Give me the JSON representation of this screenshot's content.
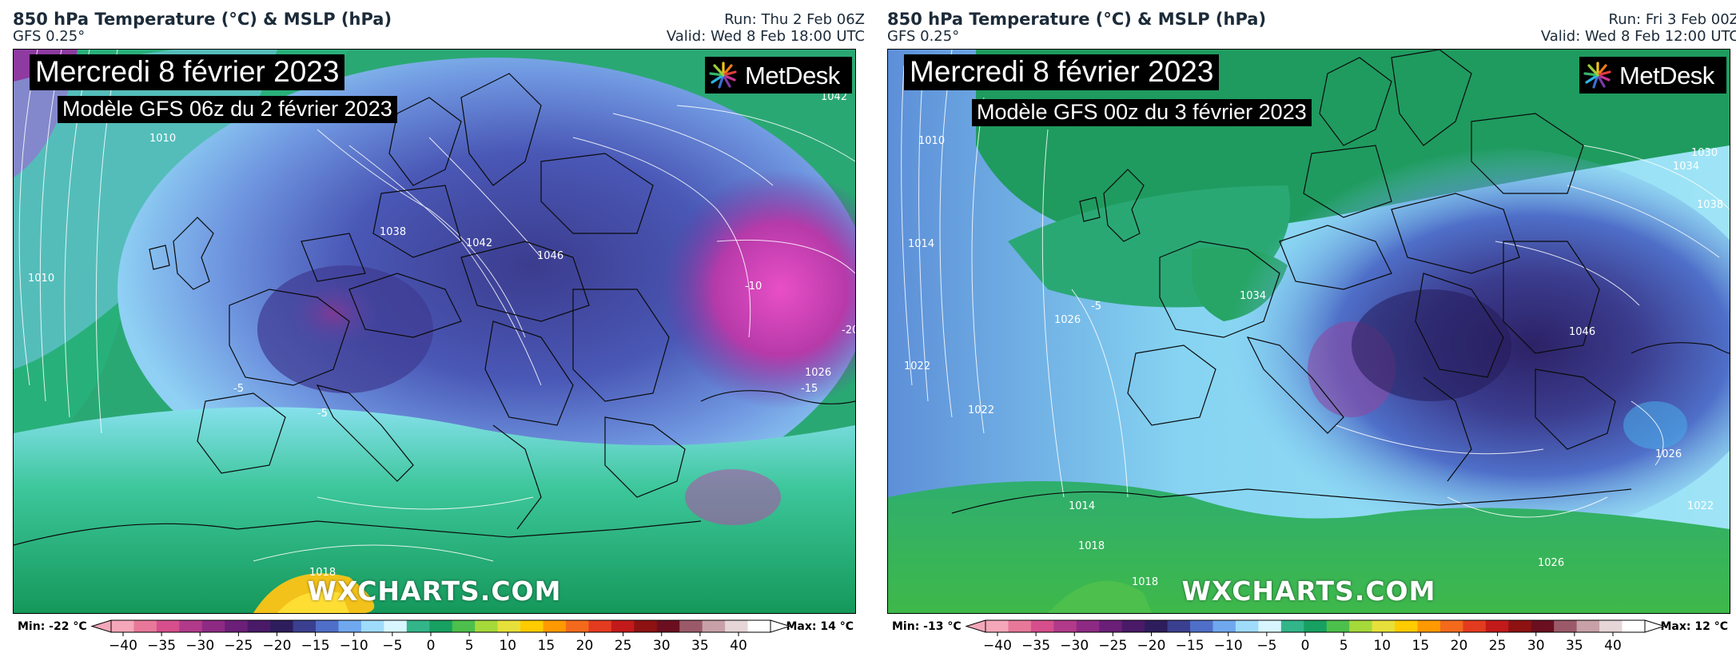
{
  "panels": [
    {
      "title": "850 hPa Temperature (°C) & MSLP (hPa)",
      "model": "GFS 0.25°",
      "run": "Run: Thu 2 Feb 06Z",
      "valid": "Valid: Wed 8 Feb 18:00 UTC",
      "date_banner": "Mercredi 8 février 2023",
      "model_banner": "Modèle GFS 06z du 2 février 2023",
      "logo": "MetDesk",
      "watermark": "WXCHARTS.COM",
      "min_label": "Min: -22 °C",
      "max_label": "Max: 14 °C",
      "contour_labels": [
        "1042",
        "1038",
        "1042",
        "1046",
        "1010",
        "1010",
        "1026",
        "1018",
        "-5",
        "-5",
        "-10",
        "-15",
        "-20"
      ]
    },
    {
      "title": "850 hPa Temperature (°C) & MSLP (hPa)",
      "model": "GFS 0.25°",
      "run": "Run: Fri 3 Feb 00Z",
      "valid": "Valid: Wed 8 Feb 12:00 UTC",
      "date_banner": "Mercredi 8 février 2023",
      "model_banner": "Modèle GFS 00z du 3 février 2023",
      "logo": "MetDesk",
      "watermark": "WXCHARTS.COM",
      "min_label": "Min: -13 °C",
      "max_label": "Max: 12 °C",
      "contour_labels": [
        "1010",
        "1014",
        "1022",
        "1026",
        "1034",
        "1046",
        "1030",
        "1034",
        "1038",
        "1022",
        "1018",
        "1026",
        "1014",
        "1018",
        "1026",
        "1022",
        "-5"
      ]
    }
  ],
  "colorbar": {
    "ticks": [
      "−40",
      "−35",
      "−30",
      "−25",
      "−20",
      "−15",
      "−10",
      "−5",
      "0",
      "5",
      "10",
      "15",
      "20",
      "25",
      "30",
      "35",
      "40"
    ],
    "colors": [
      "#f4a7b9",
      "#e8789a",
      "#d64f8c",
      "#b23a8a",
      "#8e2a84",
      "#6b1f78",
      "#4a1a68",
      "#2e1d5c",
      "#3a3f8f",
      "#4f6fc8",
      "#6fa8ee",
      "#9fdcfb",
      "#d8f6ff",
      "#33b58a",
      "#17a061",
      "#4cbf4c",
      "#a6d93a",
      "#e8e03a",
      "#ffcc00",
      "#ff9900",
      "#f36a1c",
      "#e33b1f",
      "#c21a1a",
      "#8e1212",
      "#6b0f20",
      "#9a5a6a",
      "#c8a0a8",
      "#e6d6d8",
      "#ffffff"
    ]
  }
}
